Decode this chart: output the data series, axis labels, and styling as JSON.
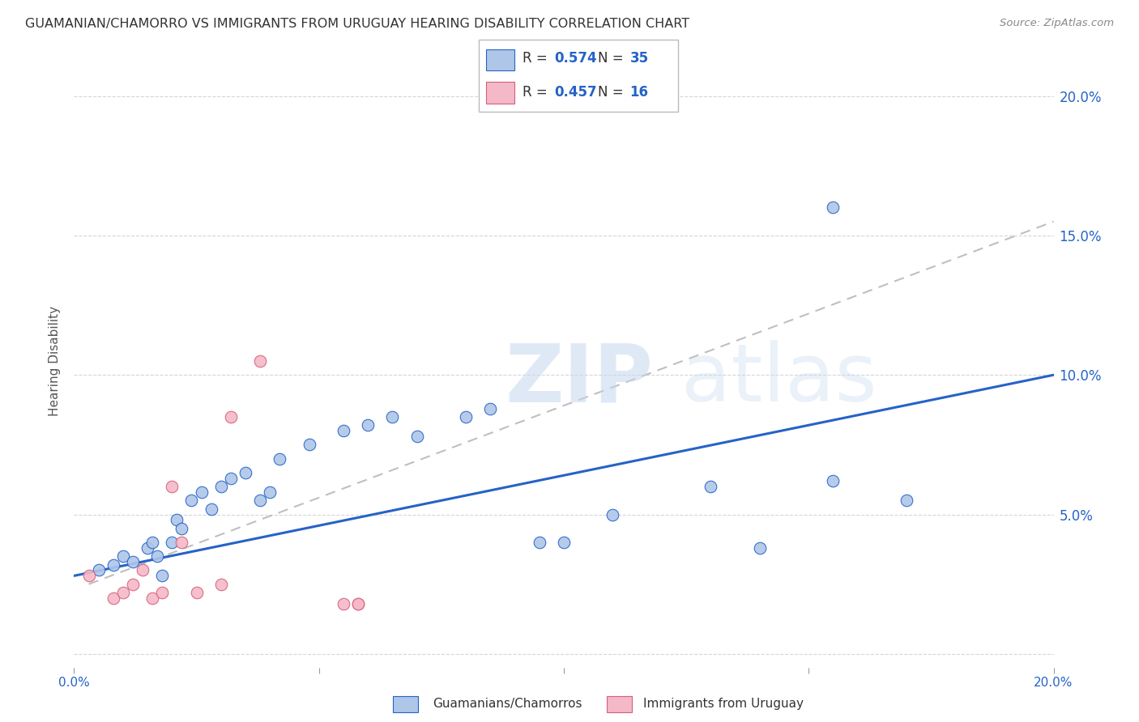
{
  "title": "GUAMANIAN/CHAMORRO VS IMMIGRANTS FROM URUGUAY HEARING DISABILITY CORRELATION CHART",
  "source": "Source: ZipAtlas.com",
  "ylabel": "Hearing Disability",
  "xlim": [
    0,
    0.2
  ],
  "ylim": [
    -0.005,
    0.215
  ],
  "blue_R": "0.574",
  "blue_N": "35",
  "pink_R": "0.457",
  "pink_N": "16",
  "blue_color": "#aec6e8",
  "blue_line_color": "#2563c7",
  "pink_color": "#f5b8c8",
  "pink_line_color": "#d4607a",
  "blue_scatter_x": [
    0.005,
    0.008,
    0.01,
    0.012,
    0.015,
    0.016,
    0.017,
    0.018,
    0.02,
    0.021,
    0.022,
    0.024,
    0.026,
    0.028,
    0.03,
    0.032,
    0.035,
    0.038,
    0.04,
    0.042,
    0.048,
    0.055,
    0.06,
    0.065,
    0.07,
    0.08,
    0.085,
    0.095,
    0.1,
    0.11,
    0.13,
    0.14,
    0.155,
    0.17,
    0.155
  ],
  "blue_scatter_y": [
    0.03,
    0.032,
    0.035,
    0.033,
    0.038,
    0.04,
    0.035,
    0.028,
    0.04,
    0.048,
    0.045,
    0.055,
    0.058,
    0.052,
    0.06,
    0.063,
    0.065,
    0.055,
    0.058,
    0.07,
    0.075,
    0.08,
    0.082,
    0.085,
    0.078,
    0.085,
    0.088,
    0.04,
    0.04,
    0.05,
    0.06,
    0.038,
    0.16,
    0.055,
    0.062
  ],
  "pink_scatter_x": [
    0.003,
    0.008,
    0.01,
    0.012,
    0.014,
    0.016,
    0.018,
    0.02,
    0.022,
    0.025,
    0.03,
    0.032,
    0.038,
    0.055,
    0.058,
    0.058
  ],
  "pink_scatter_y": [
    0.028,
    0.02,
    0.022,
    0.025,
    0.03,
    0.02,
    0.022,
    0.06,
    0.04,
    0.022,
    0.025,
    0.085,
    0.105,
    0.018,
    0.018,
    0.018
  ],
  "blue_line_x": [
    0.0,
    0.2
  ],
  "blue_line_y": [
    0.028,
    0.1
  ],
  "pink_line_x": [
    0.003,
    0.2
  ],
  "pink_line_y": [
    0.025,
    0.155
  ]
}
